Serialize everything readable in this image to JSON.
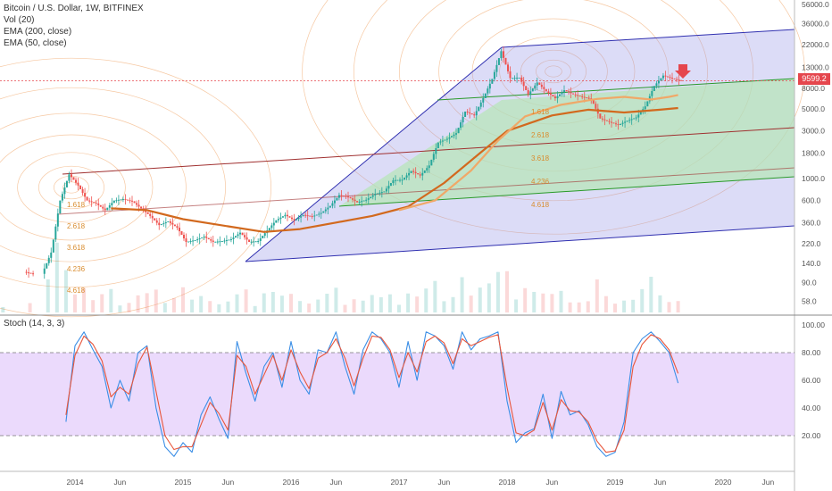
{
  "header": {
    "title": "Bitcoin / U.S. Dollar, 1W, BITFINEX",
    "indicators": [
      "Vol (20)",
      "EMA (200, close)",
      "EMA (50, close)"
    ],
    "stoch_label": "Stoch (14, 3, 3)",
    "current_price": "9599.2"
  },
  "chart_data": [
    {
      "type": "line",
      "title": "Bitcoin / U.S. Dollar, 1W, BITFINEX",
      "y_scale": "log",
      "ylim": [
        45,
        56000
      ],
      "y_ticks": [
        "56000.0",
        "36000.0",
        "22000.0",
        "13000.0",
        "8000.0",
        "5000.0",
        "3000.0",
        "1800.0",
        "1000.0",
        "600.0",
        "360.0",
        "220.0",
        "140.0",
        "90.0",
        "58.0"
      ],
      "x_ticks": [
        "2014",
        "Jun",
        "2015",
        "Jun",
        "2016",
        "Jun",
        "2017",
        "Jun",
        "2018",
        "Jun",
        "2019",
        "Jun",
        "2020",
        "Jun"
      ],
      "price_series": [
        {
          "t": "2013-05",
          "v": 115
        },
        {
          "t": "2013-08",
          "v": 110
        },
        {
          "t": "2013-10",
          "v": 180
        },
        {
          "t": "2013-11",
          "v": 600
        },
        {
          "t": "2013-12",
          "v": 1100
        },
        {
          "t": "2014-01",
          "v": 850
        },
        {
          "t": "2014-02",
          "v": 600
        },
        {
          "t": "2014-03",
          "v": 560
        },
        {
          "t": "2014-04",
          "v": 480
        },
        {
          "t": "2014-05",
          "v": 600
        },
        {
          "t": "2014-06",
          "v": 620
        },
        {
          "t": "2014-07",
          "v": 590
        },
        {
          "t": "2014-08",
          "v": 500
        },
        {
          "t": "2014-09",
          "v": 420
        },
        {
          "t": "2014-10",
          "v": 340
        },
        {
          "t": "2014-11",
          "v": 370
        },
        {
          "t": "2014-12",
          "v": 320
        },
        {
          "t": "2015-01",
          "v": 230
        },
        {
          "t": "2015-02",
          "v": 240
        },
        {
          "t": "2015-03",
          "v": 260
        },
        {
          "t": "2015-04",
          "v": 230
        },
        {
          "t": "2015-05",
          "v": 235
        },
        {
          "t": "2015-06",
          "v": 245
        },
        {
          "t": "2015-07",
          "v": 285
        },
        {
          "t": "2015-08",
          "v": 230
        },
        {
          "t": "2015-09",
          "v": 235
        },
        {
          "t": "2015-10",
          "v": 300
        },
        {
          "t": "2015-11",
          "v": 380
        },
        {
          "t": "2015-12",
          "v": 430
        },
        {
          "t": "2016-01",
          "v": 380
        },
        {
          "t": "2016-02",
          "v": 430
        },
        {
          "t": "2016-03",
          "v": 415
        },
        {
          "t": "2016-04",
          "v": 450
        },
        {
          "t": "2016-05",
          "v": 530
        },
        {
          "t": "2016-06",
          "v": 680
        },
        {
          "t": "2016-07",
          "v": 650
        },
        {
          "t": "2016-08",
          "v": 575
        },
        {
          "t": "2016-09",
          "v": 610
        },
        {
          "t": "2016-10",
          "v": 700
        },
        {
          "t": "2016-11",
          "v": 740
        },
        {
          "t": "2016-12",
          "v": 960
        },
        {
          "t": "2017-01",
          "v": 970
        },
        {
          "t": "2017-02",
          "v": 1190
        },
        {
          "t": "2017-03",
          "v": 1070
        },
        {
          "t": "2017-04",
          "v": 1350
        },
        {
          "t": "2017-05",
          "v": 2300
        },
        {
          "t": "2017-06",
          "v": 2500
        },
        {
          "t": "2017-07",
          "v": 2850
        },
        {
          "t": "2017-08",
          "v": 4700
        },
        {
          "t": "2017-09",
          "v": 4300
        },
        {
          "t": "2017-10",
          "v": 6400
        },
        {
          "t": "2017-11",
          "v": 10000
        },
        {
          "t": "2017-12",
          "v": 19000
        },
        {
          "t": "2018-01",
          "v": 10200
        },
        {
          "t": "2018-02",
          "v": 10300
        },
        {
          "t": "2018-03",
          "v": 7000
        },
        {
          "t": "2018-04",
          "v": 9200
        },
        {
          "t": "2018-05",
          "v": 7500
        },
        {
          "t": "2018-06",
          "v": 6400
        },
        {
          "t": "2018-07",
          "v": 7700
        },
        {
          "t": "2018-08",
          "v": 7000
        },
        {
          "t": "2018-09",
          "v": 6600
        },
        {
          "t": "2018-10",
          "v": 6300
        },
        {
          "t": "2018-11",
          "v": 4000
        },
        {
          "t": "2018-12",
          "v": 3700
        },
        {
          "t": "2019-01",
          "v": 3450
        },
        {
          "t": "2019-02",
          "v": 3800
        },
        {
          "t": "2019-03",
          "v": 4100
        },
        {
          "t": "2019-04",
          "v": 5300
        },
        {
          "t": "2019-05",
          "v": 8500
        },
        {
          "t": "2019-06",
          "v": 10800
        },
        {
          "t": "2019-07",
          "v": 10100
        },
        {
          "t": "2019-08",
          "v": 9599.2
        }
      ],
      "ema_200": [
        {
          "t": "2014-05",
          "v": 500
        },
        {
          "t": "2014-09",
          "v": 480
        },
        {
          "t": "2015-01",
          "v": 390
        },
        {
          "t": "2015-06",
          "v": 330
        },
        {
          "t": "2015-10",
          "v": 290
        },
        {
          "t": "2016-02",
          "v": 310
        },
        {
          "t": "2016-06",
          "v": 360
        },
        {
          "t": "2016-10",
          "v": 420
        },
        {
          "t": "2017-02",
          "v": 520
        },
        {
          "t": "2017-06",
          "v": 900
        },
        {
          "t": "2017-10",
          "v": 1800
        },
        {
          "t": "2018-01",
          "v": 3000
        },
        {
          "t": "2018-06",
          "v": 4300
        },
        {
          "t": "2018-10",
          "v": 4900
        },
        {
          "t": "2019-02",
          "v": 4600
        },
        {
          "t": "2019-06",
          "v": 4900
        },
        {
          "t": "2019-08",
          "v": 5100
        }
      ],
      "ema_50": [
        {
          "t": "2017-01",
          "v": 480
        },
        {
          "t": "2017-05",
          "v": 600
        },
        {
          "t": "2017-09",
          "v": 1200
        },
        {
          "t": "2017-12",
          "v": 2400
        },
        {
          "t": "2018-03",
          "v": 4200
        },
        {
          "t": "2018-07",
          "v": 5500
        },
        {
          "t": "2018-11",
          "v": 6300
        },
        {
          "t": "2019-02",
          "v": 6600
        },
        {
          "t": "2019-05",
          "v": 6200
        },
        {
          "t": "2019-07",
          "v": 6600
        },
        {
          "t": "2019-08",
          "v": 6900
        }
      ],
      "fib_labels": [
        "1.618",
        "2.618",
        "3.618",
        "4.236",
        "4.618"
      ],
      "fib_labels_left": [
        "1.618",
        "2.618",
        "3.618",
        "4.236",
        "4.618"
      ]
    },
    {
      "type": "line",
      "title": "Stoch (14, 3, 3)",
      "ylim": [
        0,
        100
      ],
      "y_ticks": [
        "100.00",
        "80.00",
        "60.00",
        "40.00",
        "20.00"
      ],
      "bands": [
        20,
        80
      ],
      "series": [
        {
          "color": "#3a8ee6",
          "values": [
            {
              "t": "2013-12",
              "v": 30
            },
            {
              "t": "2014-01",
              "v": 85
            },
            {
              "t": "2014-02",
              "v": 95
            },
            {
              "t": "2014-03",
              "v": 82
            },
            {
              "t": "2014-04",
              "v": 70
            },
            {
              "t": "2014-05",
              "v": 40
            },
            {
              "t": "2014-06",
              "v": 60
            },
            {
              "t": "2014-07",
              "v": 45
            },
            {
              "t": "2014-08",
              "v": 80
            },
            {
              "t": "2014-09",
              "v": 85
            },
            {
              "t": "2014-10",
              "v": 40
            },
            {
              "t": "2014-11",
              "v": 12
            },
            {
              "t": "2014-12",
              "v": 5
            },
            {
              "t": "2015-01",
              "v": 15
            },
            {
              "t": "2015-02",
              "v": 8
            },
            {
              "t": "2015-03",
              "v": 35
            },
            {
              "t": "2015-04",
              "v": 48
            },
            {
              "t": "2015-05",
              "v": 32
            },
            {
              "t": "2015-06",
              "v": 18
            },
            {
              "t": "2015-07",
              "v": 88
            },
            {
              "t": "2015-08",
              "v": 65
            },
            {
              "t": "2015-09",
              "v": 45
            },
            {
              "t": "2015-10",
              "v": 70
            },
            {
              "t": "2015-11",
              "v": 80
            },
            {
              "t": "2015-12",
              "v": 55
            },
            {
              "t": "2016-01",
              "v": 88
            },
            {
              "t": "2016-02",
              "v": 60
            },
            {
              "t": "2016-03",
              "v": 50
            },
            {
              "t": "2016-04",
              "v": 82
            },
            {
              "t": "2016-05",
              "v": 80
            },
            {
              "t": "2016-06",
              "v": 95
            },
            {
              "t": "2016-07",
              "v": 70
            },
            {
              "t": "2016-08",
              "v": 50
            },
            {
              "t": "2016-09",
              "v": 82
            },
            {
              "t": "2016-10",
              "v": 95
            },
            {
              "t": "2016-11",
              "v": 90
            },
            {
              "t": "2016-12",
              "v": 80
            },
            {
              "t": "2017-01",
              "v": 55
            },
            {
              "t": "2017-02",
              "v": 88
            },
            {
              "t": "2017-03",
              "v": 60
            },
            {
              "t": "2017-04",
              "v": 95
            },
            {
              "t": "2017-05",
              "v": 92
            },
            {
              "t": "2017-06",
              "v": 85
            },
            {
              "t": "2017-07",
              "v": 68
            },
            {
              "t": "2017-08",
              "v": 95
            },
            {
              "t": "2017-09",
              "v": 82
            },
            {
              "t": "2017-10",
              "v": 90
            },
            {
              "t": "2017-11",
              "v": 92
            },
            {
              "t": "2017-12",
              "v": 95
            },
            {
              "t": "2018-01",
              "v": 45
            },
            {
              "t": "2018-02",
              "v": 15
            },
            {
              "t": "2018-03",
              "v": 22
            },
            {
              "t": "2018-04",
              "v": 25
            },
            {
              "t": "2018-05",
              "v": 50
            },
            {
              "t": "2018-06",
              "v": 18
            },
            {
              "t": "2018-07",
              "v": 52
            },
            {
              "t": "2018-08",
              "v": 35
            },
            {
              "t": "2018-09",
              "v": 38
            },
            {
              "t": "2018-10",
              "v": 28
            },
            {
              "t": "2018-11",
              "v": 12
            },
            {
              "t": "2018-12",
              "v": 5
            },
            {
              "t": "2019-01",
              "v": 8
            },
            {
              "t": "2019-02",
              "v": 30
            },
            {
              "t": "2019-03",
              "v": 80
            },
            {
              "t": "2019-04",
              "v": 90
            },
            {
              "t": "2019-05",
              "v": 95
            },
            {
              "t": "2019-06",
              "v": 88
            },
            {
              "t": "2019-07",
              "v": 80
            },
            {
              "t": "2019-08",
              "v": 58
            }
          ]
        },
        {
          "color": "#e8553a",
          "values": [
            {
              "t": "2013-12",
              "v": 35
            },
            {
              "t": "2014-01",
              "v": 78
            },
            {
              "t": "2014-02",
              "v": 92
            },
            {
              "t": "2014-03",
              "v": 86
            },
            {
              "t": "2014-04",
              "v": 74
            },
            {
              "t": "2014-05",
              "v": 48
            },
            {
              "t": "2014-06",
              "v": 55
            },
            {
              "t": "2014-07",
              "v": 50
            },
            {
              "t": "2014-08",
              "v": 72
            },
            {
              "t": "2014-09",
              "v": 84
            },
            {
              "t": "2014-10",
              "v": 52
            },
            {
              "t": "2014-11",
              "v": 20
            },
            {
              "t": "2014-12",
              "v": 10
            },
            {
              "t": "2015-01",
              "v": 12
            },
            {
              "t": "2015-02",
              "v": 12
            },
            {
              "t": "2015-03",
              "v": 28
            },
            {
              "t": "2015-04",
              "v": 44
            },
            {
              "t": "2015-05",
              "v": 36
            },
            {
              "t": "2015-06",
              "v": 24
            },
            {
              "t": "2015-07",
              "v": 78
            },
            {
              "t": "2015-08",
              "v": 70
            },
            {
              "t": "2015-09",
              "v": 50
            },
            {
              "t": "2015-10",
              "v": 64
            },
            {
              "t": "2015-11",
              "v": 78
            },
            {
              "t": "2015-12",
              "v": 60
            },
            {
              "t": "2016-01",
              "v": 82
            },
            {
              "t": "2016-02",
              "v": 66
            },
            {
              "t": "2016-03",
              "v": 54
            },
            {
              "t": "2016-04",
              "v": 76
            },
            {
              "t": "2016-05",
              "v": 80
            },
            {
              "t": "2016-06",
              "v": 90
            },
            {
              "t": "2016-07",
              "v": 76
            },
            {
              "t": "2016-08",
              "v": 56
            },
            {
              "t": "2016-09",
              "v": 76
            },
            {
              "t": "2016-10",
              "v": 92
            },
            {
              "t": "2016-11",
              "v": 91
            },
            {
              "t": "2016-12",
              "v": 82
            },
            {
              "t": "2017-01",
              "v": 62
            },
            {
              "t": "2017-02",
              "v": 80
            },
            {
              "t": "2017-03",
              "v": 66
            },
            {
              "t": "2017-04",
              "v": 88
            },
            {
              "t": "2017-05",
              "v": 92
            },
            {
              "t": "2017-06",
              "v": 87
            },
            {
              "t": "2017-07",
              "v": 72
            },
            {
              "t": "2017-08",
              "v": 90
            },
            {
              "t": "2017-09",
              "v": 85
            },
            {
              "t": "2017-10",
              "v": 88
            },
            {
              "t": "2017-11",
              "v": 91
            },
            {
              "t": "2017-12",
              "v": 93
            },
            {
              "t": "2018-01",
              "v": 55
            },
            {
              "t": "2018-02",
              "v": 22
            },
            {
              "t": "2018-03",
              "v": 20
            },
            {
              "t": "2018-04",
              "v": 24
            },
            {
              "t": "2018-05",
              "v": 44
            },
            {
              "t": "2018-06",
              "v": 24
            },
            {
              "t": "2018-07",
              "v": 46
            },
            {
              "t": "2018-08",
              "v": 38
            },
            {
              "t": "2018-09",
              "v": 37
            },
            {
              "t": "2018-10",
              "v": 30
            },
            {
              "t": "2018-11",
              "v": 16
            },
            {
              "t": "2018-12",
              "v": 8
            },
            {
              "t": "2019-01",
              "v": 9
            },
            {
              "t": "2019-02",
              "v": 24
            },
            {
              "t": "2019-03",
              "v": 70
            },
            {
              "t": "2019-04",
              "v": 86
            },
            {
              "t": "2019-05",
              "v": 93
            },
            {
              "t": "2019-06",
              "v": 90
            },
            {
              "t": "2019-07",
              "v": 82
            },
            {
              "t": "2019-08",
              "v": 65
            }
          ]
        }
      ]
    }
  ],
  "colors": {
    "up": "#26a69a",
    "down": "#ef5350",
    "ema200": "#d2691e",
    "ema50": "#f0a868",
    "stoch_band": "#e4cdfb",
    "fork_blue": "#9b9be8",
    "fork_green": "#b5e6b5",
    "price_line": "#e5464d"
  }
}
